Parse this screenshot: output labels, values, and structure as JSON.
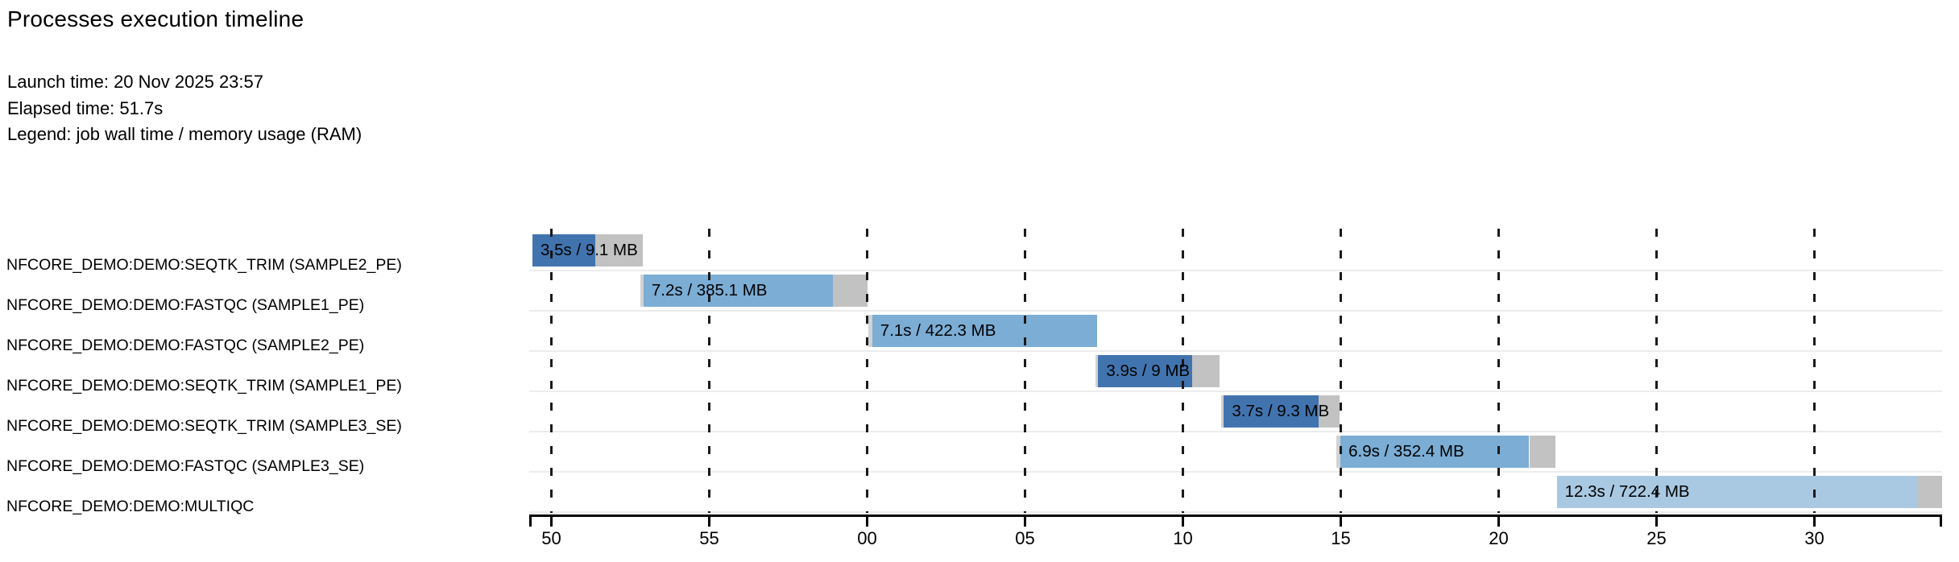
{
  "header": {
    "title": "Processes execution timeline",
    "launch_line": "Launch time: 20 Nov 2025 23:57",
    "elapsed_line": "Elapsed time: 51.7s",
    "legend_line": "Legend: job wall time / memory usage (RAM)"
  },
  "chart_data": {
    "type": "bar",
    "subtype": "gantt-timeline",
    "title": "Processes execution timeline",
    "launch_time": "20 Nov 2025 23:57",
    "elapsed_time": "51.7s",
    "legend": "job wall time / memory usage (RAM)",
    "time_axis": {
      "unit": "seconds (mm ss ticks)",
      "domain": [
        49.35,
        94.05
      ],
      "ticks": [
        {
          "label": "50",
          "t": 50
        },
        {
          "label": "55",
          "t": 55
        },
        {
          "label": "00",
          "t": 60
        },
        {
          "label": "05",
          "t": 65
        },
        {
          "label": "10",
          "t": 70
        },
        {
          "label": "15",
          "t": 75
        },
        {
          "label": "20",
          "t": 80
        },
        {
          "label": "25",
          "t": 85
        },
        {
          "label": "30",
          "t": 90
        }
      ]
    },
    "colors": {
      "seqtk_trim": "#4174af",
      "fastqc": "#7badd5",
      "multiqc": "#a9c8e2",
      "queue_gray": "#d2d2d2",
      "overhead_gray": "#c2c2c2"
    },
    "processes": [
      {
        "process": "NFCORE_DEMO:DEMO:SEQTK_TRIM (SAMPLE2_PE)",
        "bar_label": "3.5s / 9.1 MB",
        "wall_time": "3.5s",
        "memory": "9.1 MB",
        "color_key": "seqtk_trim",
        "start": 49.4,
        "lead_end": 49.4,
        "run_end": 51.4,
        "end": 52.9
      },
      {
        "process": "NFCORE_DEMO:DEMO:FASTQC (SAMPLE1_PE)",
        "bar_label": "7.2s / 385.1 MB",
        "wall_time": "7.2s",
        "memory": "385.1 MB",
        "color_key": "fastqc",
        "start": 52.82,
        "lead_end": 52.92,
        "run_end": 58.92,
        "end": 60.02
      },
      {
        "process": "NFCORE_DEMO:DEMO:FASTQC (SAMPLE2_PE)",
        "bar_label": "7.1s / 422.3 MB",
        "wall_time": "7.1s",
        "memory": "422.3 MB",
        "color_key": "fastqc",
        "start": 60.03,
        "lead_end": 60.16,
        "run_end": 67.28,
        "end": 67.28
      },
      {
        "process": "NFCORE_DEMO:DEMO:SEQTK_TRIM (SAMPLE1_PE)",
        "bar_label": "3.9s / 9 MB",
        "wall_time": "3.9s",
        "memory": "9 MB",
        "color_key": "seqtk_trim",
        "start": 67.22,
        "lead_end": 67.32,
        "run_end": 70.3,
        "end": 71.17
      },
      {
        "process": "NFCORE_DEMO:DEMO:SEQTK_TRIM (SAMPLE3_SE)",
        "bar_label": "3.7s / 9.3 MB",
        "wall_time": "3.7s",
        "memory": "9.3 MB",
        "color_key": "seqtk_trim",
        "start": 71.2,
        "lead_end": 71.3,
        "run_end": 74.3,
        "end": 74.95
      },
      {
        "process": "NFCORE_DEMO:DEMO:FASTQC (SAMPLE3_SE)",
        "bar_label": "6.9s / 352.4 MB",
        "wall_time": "6.9s",
        "memory": "352.4 MB",
        "color_key": "fastqc",
        "start": 74.87,
        "lead_end": 74.99,
        "run_end": 80.97,
        "end": 81.79
      },
      {
        "process": "NFCORE_DEMO:DEMO:MULTIQC",
        "bar_label": "12.3s / 722.4 MB",
        "wall_time": "12.3s",
        "memory": "722.4 MB",
        "color_key": "multiqc",
        "start": 81.84,
        "lead_end": 81.84,
        "run_end": 93.28,
        "end": 94.05
      }
    ]
  }
}
